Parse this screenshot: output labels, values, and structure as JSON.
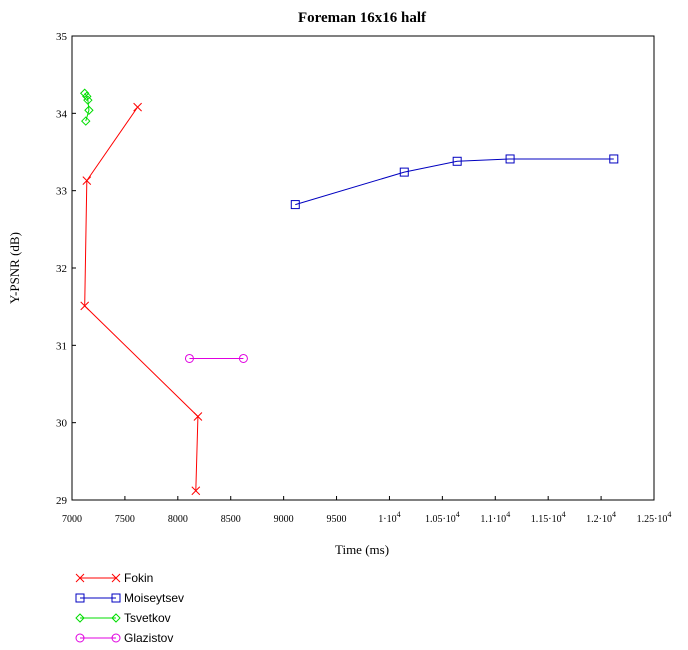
{
  "chart_data": {
    "type": "line",
    "title": "Foreman 16x16 half",
    "xlabel": "Time (ms)",
    "ylabel": "Y-PSNR (dB)",
    "xlim": [
      7000,
      12500
    ],
    "ylim": [
      29,
      35
    ],
    "x_ticks": [
      {
        "value": 7000,
        "base": "7000",
        "exp": ""
      },
      {
        "value": 7500,
        "base": "7500",
        "exp": ""
      },
      {
        "value": 8000,
        "base": "8000",
        "exp": ""
      },
      {
        "value": 8500,
        "base": "8500",
        "exp": ""
      },
      {
        "value": 9000,
        "base": "9000",
        "exp": ""
      },
      {
        "value": 9500,
        "base": "9500",
        "exp": ""
      },
      {
        "value": 10000,
        "base": "1·10",
        "exp": "4"
      },
      {
        "value": 10500,
        "base": "1.05·10",
        "exp": "4"
      },
      {
        "value": 11000,
        "base": "1.1·10",
        "exp": "4"
      },
      {
        "value": 11500,
        "base": "1.15·10",
        "exp": "4"
      },
      {
        "value": 12000,
        "base": "1.2·10",
        "exp": "4"
      },
      {
        "value": 12500,
        "base": "1.25·10",
        "exp": "4"
      }
    ],
    "y_ticks": [
      29,
      30,
      31,
      32,
      33,
      34,
      35
    ],
    "grid": false,
    "legend_position": "bottom-left",
    "series": [
      {
        "name": "Fokin",
        "color": "#ff0000",
        "marker": "x",
        "points": [
          {
            "x": 7620,
            "y": 34.08
          },
          {
            "x": 7140,
            "y": 33.13
          },
          {
            "x": 7120,
            "y": 31.51
          },
          {
            "x": 8190,
            "y": 30.08
          },
          {
            "x": 8170,
            "y": 29.12
          }
        ]
      },
      {
        "name": "Moiseytsev",
        "color": "#0000c0",
        "marker": "square",
        "points": [
          {
            "x": 9110,
            "y": 32.82
          },
          {
            "x": 10140,
            "y": 33.24
          },
          {
            "x": 10640,
            "y": 33.38
          },
          {
            "x": 11140,
            "y": 33.41
          },
          {
            "x": 12120,
            "y": 33.41
          }
        ]
      },
      {
        "name": "Tsvetkov",
        "color": "#00dd00",
        "marker": "diamond",
        "points": [
          {
            "x": 7120,
            "y": 34.26
          },
          {
            "x": 7140,
            "y": 34.22
          },
          {
            "x": 7150,
            "y": 34.17
          },
          {
            "x": 7160,
            "y": 34.04
          },
          {
            "x": 7130,
            "y": 33.9
          }
        ]
      },
      {
        "name": "Glazistov",
        "color": "#e000e0",
        "marker": "circle",
        "points": [
          {
            "x": 8110,
            "y": 30.83
          },
          {
            "x": 8620,
            "y": 30.83
          }
        ]
      }
    ]
  }
}
